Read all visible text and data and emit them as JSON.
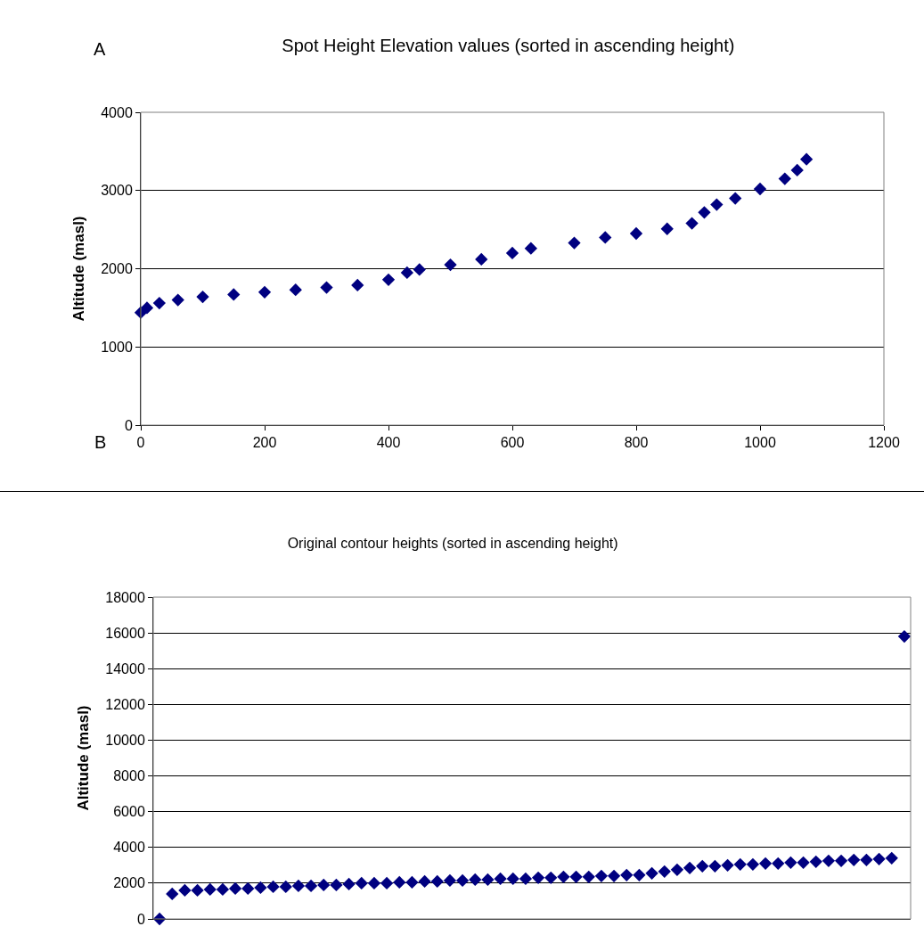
{
  "chart_data": [
    {
      "type": "scatter",
      "title": "Spot Height Elevation values (sorted in ascending height)",
      "ylabel": "Altitude (masl)",
      "annotations": [
        "A",
        "B"
      ],
      "x": [
        0,
        10,
        30,
        60,
        100,
        150,
        200,
        250,
        300,
        350,
        400,
        430,
        450,
        500,
        550,
        600,
        630,
        700,
        750,
        800,
        850,
        890,
        910,
        930,
        960,
        1000,
        1040,
        1060,
        1075
      ],
      "series": [
        {
          "color": "#000080",
          "values": [
            1440,
            1500,
            1560,
            1600,
            1640,
            1670,
            1700,
            1730,
            1760,
            1790,
            1860,
            1950,
            1990,
            2050,
            2120,
            2200,
            2260,
            2330,
            2400,
            2450,
            2510,
            2580,
            2720,
            2820,
            2900,
            3020,
            3150,
            3260,
            3400
          ]
        }
      ],
      "xlim": [
        0,
        1200
      ],
      "xticks": [
        0,
        200,
        400,
        600,
        800,
        1000,
        1200
      ],
      "ylim": [
        0,
        4000
      ],
      "yticks": [
        0,
        1000,
        2000,
        3000,
        4000
      ],
      "grid": "y",
      "marker": "diamond"
    },
    {
      "type": "scatter",
      "title": "Original contour heights (sorted in ascending height)",
      "ylabel": "Altitude (masl)",
      "categories": [
        null,
        null,
        null,
        null,
        null,
        null,
        null,
        null,
        null,
        null,
        null,
        null,
        null,
        null,
        null,
        null,
        null,
        null,
        null,
        null,
        null,
        null,
        null,
        null,
        null,
        null,
        null,
        null,
        null,
        null,
        null,
        null,
        null,
        null,
        null,
        null,
        null,
        null,
        null,
        null,
        null,
        null,
        null,
        null,
        null,
        null,
        null,
        null,
        null,
        null,
        null,
        null,
        null,
        null,
        null,
        null,
        null,
        null,
        null,
        null
      ],
      "series": [
        {
          "color": "#000080",
          "values": [
            0,
            1400,
            1600,
            1600,
            1650,
            1650,
            1700,
            1700,
            1750,
            1800,
            1800,
            1850,
            1850,
            1900,
            1900,
            1950,
            2000,
            2000,
            2000,
            2050,
            2050,
            2100,
            2100,
            2150,
            2150,
            2200,
            2200,
            2250,
            2250,
            2250,
            2300,
            2300,
            2350,
            2350,
            2350,
            2400,
            2400,
            2450,
            2450,
            2550,
            2650,
            2750,
            2850,
            2950,
            2950,
            3000,
            3050,
            3050,
            3100,
            3100,
            3150,
            3150,
            3200,
            3250,
            3250,
            3300,
            3300,
            3350,
            3400,
            15800
          ]
        }
      ],
      "ylim": [
        0,
        18000
      ],
      "yticks": [
        0,
        2000,
        4000,
        6000,
        8000,
        10000,
        12000,
        14000,
        16000,
        18000
      ],
      "grid": "y",
      "marker": "diamond",
      "tick_labels": "y"
    }
  ]
}
